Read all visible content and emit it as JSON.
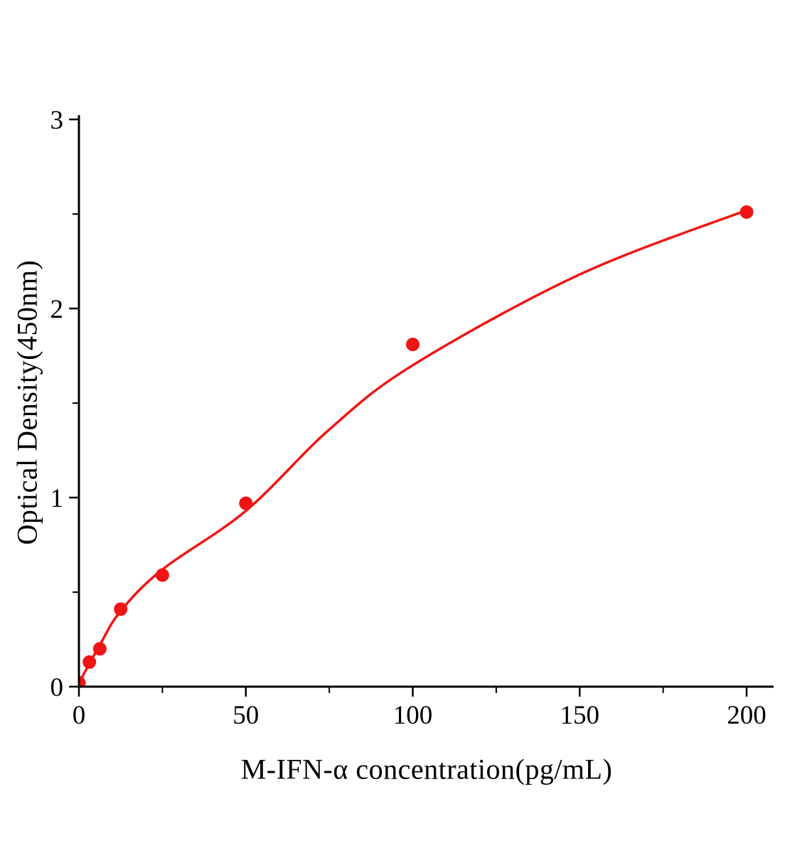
{
  "page": {
    "background": "#ffffff"
  },
  "chart_data": {
    "type": "scatter",
    "title": "",
    "xlabel": "M-IFN-α concentration(pg/mL)",
    "ylabel": "Optical Density(450nm)",
    "xlim": [
      0,
      200
    ],
    "ylim": [
      0,
      3
    ],
    "x_ticks": [
      0,
      50,
      100,
      150,
      200
    ],
    "y_ticks": [
      0,
      1,
      2,
      3
    ],
    "x_minor_ticks": [
      25,
      75,
      125,
      175
    ],
    "y_minor_ticks": [
      0.5,
      1.5,
      2.5
    ],
    "grid": "off",
    "legend": null,
    "series_color": "#f01414",
    "axis_color": "#000000",
    "points": [
      {
        "x": 0,
        "y": 0.02
      },
      {
        "x": 3.125,
        "y": 0.13
      },
      {
        "x": 6.25,
        "y": 0.2
      },
      {
        "x": 12.5,
        "y": 0.41
      },
      {
        "x": 25,
        "y": 0.59
      },
      {
        "x": 50,
        "y": 0.97
      },
      {
        "x": 100,
        "y": 1.81
      },
      {
        "x": 200,
        "y": 2.51
      }
    ],
    "fit_curve": [
      {
        "x": 0,
        "y": 0.02
      },
      {
        "x": 6.25,
        "y": 0.22
      },
      {
        "x": 12.5,
        "y": 0.4
      },
      {
        "x": 25,
        "y": 0.62
      },
      {
        "x": 50,
        "y": 0.93
      },
      {
        "x": 75,
        "y": 1.36
      },
      {
        "x": 100,
        "y": 1.7
      },
      {
        "x": 150,
        "y": 2.18
      },
      {
        "x": 200,
        "y": 2.52
      }
    ]
  }
}
